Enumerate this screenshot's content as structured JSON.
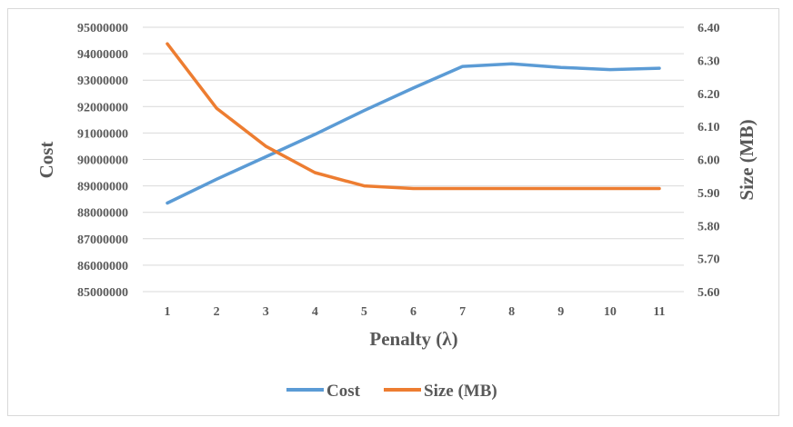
{
  "chart_data": {
    "type": "line",
    "xlabel": "Penalty (λ)",
    "ylabel": "Cost",
    "y2label": "Size (MB)",
    "categories": [
      "1",
      "2",
      "3",
      "4",
      "5",
      "6",
      "7",
      "8",
      "9",
      "10",
      "11"
    ],
    "ylim": [
      85000000,
      95000000
    ],
    "y2lim": [
      5.6,
      6.4
    ],
    "y_ticks": [
      "85000000",
      "86000000",
      "87000000",
      "88000000",
      "89000000",
      "90000000",
      "91000000",
      "92000000",
      "93000000",
      "94000000",
      "95000000"
    ],
    "y2_ticks": [
      "5.60",
      "5.70",
      "5.80",
      "5.90",
      "6.00",
      "6.10",
      "6.20",
      "6.30",
      "6.40"
    ],
    "grid": true,
    "legend_position": "bottom",
    "series": [
      {
        "name": "Cost",
        "axis": "left",
        "color": "#5b9bd5",
        "values": [
          88350000,
          89250000,
          90100000,
          90950000,
          91850000,
          92700000,
          93520000,
          93620000,
          93480000,
          93400000,
          93450000
        ]
      },
      {
        "name": "Size (MB)",
        "axis": "right",
        "color": "#ed7d31",
        "values": [
          6.35,
          6.155,
          6.04,
          5.96,
          5.92,
          5.912,
          5.912,
          5.912,
          5.912,
          5.912,
          5.912
        ]
      }
    ]
  }
}
